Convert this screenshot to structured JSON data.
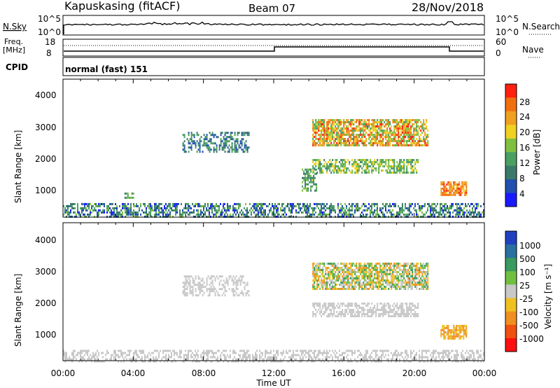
{
  "header": {
    "station": "Kapuskasing (fitACF)",
    "beam": "Beam 07",
    "date": "28/Nov/2018"
  },
  "noise_panel": {
    "left_label": "N.Sky",
    "right_label": "N.Search",
    "left_ticks": [
      "10^5",
      "10^0"
    ],
    "right_ticks": [
      "10^5",
      "10^0"
    ]
  },
  "freq_panel": {
    "left_label_1": "Freq.",
    "left_label_2": "[MHz]",
    "right_label": "Nave",
    "left_ticks": [
      "18",
      "8"
    ],
    "right_ticks": [
      "60",
      "0"
    ]
  },
  "cpid_panel": {
    "label": "CPID",
    "mode": "normal (fast) 151"
  },
  "power_panel": {
    "ylabel": "Slant Range [km]",
    "yticks": [
      "4000",
      "3000",
      "2000",
      "1000"
    ],
    "colorbar_label": "Power [dB]",
    "colorbar_ticks": [
      "28",
      "24",
      "20",
      "16",
      "12",
      "8",
      "4"
    ],
    "colors": [
      "#1a1aff",
      "#2050b0",
      "#3a7a6a",
      "#4aa060",
      "#80c040",
      "#f0d020",
      "#f0a020",
      "#f07010",
      "#ff2010"
    ]
  },
  "velocity_panel": {
    "ylabel": "Slant Range [km]",
    "yticks": [
      "4000",
      "3000",
      "2000",
      "1000"
    ],
    "colorbar_label": "Velocity [m s⁻¹]",
    "colorbar_ticks": [
      "1000",
      "500",
      "100",
      "25",
      "-25",
      "-100",
      "-500",
      "-1000"
    ],
    "colors": [
      "#2040c0",
      "#2a70a0",
      "#3a9a60",
      "#70c040",
      "#c8c8c8",
      "#f0c020",
      "#f09020",
      "#f05010",
      "#ff1010"
    ]
  },
  "xaxis": {
    "label": "Time UT",
    "ticks": [
      "00:00",
      "04:00",
      "08:00",
      "12:00",
      "16:00",
      "20:00",
      "00:00"
    ]
  },
  "chart_data": [
    {
      "type": "heatmap",
      "quantity": "power_dB",
      "x_range_hours": [
        0,
        24
      ],
      "ylim": [
        180,
        4500
      ],
      "zlim": [
        0,
        32
      ],
      "regions": [
        {
          "t0": 0.0,
          "t1": 24.0,
          "r0": 180,
          "r1": 620,
          "zmin": 2,
          "zmax": 16,
          "density": 0.55
        },
        {
          "t0": 6.8,
          "t1": 10.6,
          "r0": 2200,
          "r1": 2850,
          "zmin": 4,
          "zmax": 14,
          "density": 0.45
        },
        {
          "t0": 14.2,
          "t1": 20.8,
          "r0": 2450,
          "r1": 3250,
          "zmin": 12,
          "zmax": 30,
          "density": 0.75
        },
        {
          "t0": 14.2,
          "t1": 20.2,
          "r0": 1600,
          "r1": 2000,
          "zmin": 10,
          "zmax": 20,
          "density": 0.6
        },
        {
          "t0": 13.6,
          "t1": 14.4,
          "r0": 1000,
          "r1": 1700,
          "zmin": 8,
          "zmax": 18,
          "density": 0.55
        },
        {
          "t0": 21.5,
          "t1": 23.0,
          "r0": 900,
          "r1": 1300,
          "zmin": 20,
          "zmax": 30,
          "density": 0.8
        },
        {
          "t0": 3.5,
          "t1": 4.0,
          "r0": 780,
          "r1": 950,
          "zmin": 8,
          "zmax": 18,
          "density": 0.5
        }
      ]
    },
    {
      "type": "heatmap",
      "quantity": "velocity_m_per_s",
      "x_range_hours": [
        0,
        24
      ],
      "ylim": [
        180,
        4500
      ],
      "zlim": [
        -1000,
        1000
      ],
      "regions": [
        {
          "t0": 0.0,
          "t1": 24.0,
          "r0": 180,
          "r1": 520,
          "zmin": -100,
          "zmax": 100,
          "density": 0.5
        },
        {
          "t0": 6.8,
          "t1": 10.6,
          "r0": 2200,
          "r1": 2850,
          "zmin": -25,
          "zmax": 25,
          "density": 0.45
        },
        {
          "t0": 14.2,
          "t1": 20.8,
          "r0": 2450,
          "r1": 3250,
          "zmin": -500,
          "zmax": 500,
          "density": 0.75
        },
        {
          "t0": 14.2,
          "t1": 20.2,
          "r0": 1600,
          "r1": 2000,
          "zmin": -25,
          "zmax": 25,
          "density": 0.6
        },
        {
          "t0": 21.5,
          "t1": 23.0,
          "r0": 900,
          "r1": 1300,
          "zmin": -500,
          "zmax": -100,
          "density": 0.8
        }
      ]
    }
  ]
}
